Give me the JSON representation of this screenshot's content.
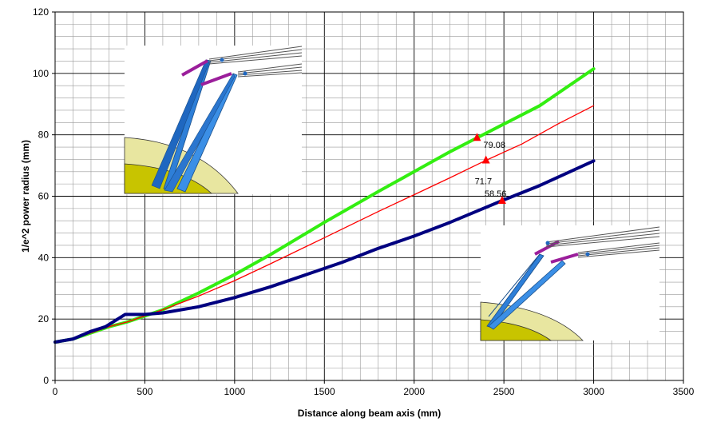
{
  "chart_data": {
    "type": "line",
    "xlabel": "Distance along beam axis (mm)",
    "ylabel": "1/e^2 power radius (mm)",
    "xlim": [
      0,
      3500
    ],
    "ylim": [
      0,
      120
    ],
    "x_ticks": [
      "0",
      "500",
      "1000",
      "1500",
      "2000",
      "2500",
      "3000",
      "3500"
    ],
    "y_ticks": [
      "0",
      "20",
      "40",
      "60",
      "80",
      "100",
      "120"
    ],
    "grid": "major and minor",
    "legend": "none",
    "series": [
      {
        "color": "#33ee11",
        "x": [
          0,
          100,
          200,
          300,
          400,
          500,
          600,
          800,
          1000,
          1200,
          1500,
          1800,
          2000,
          2200,
          2350,
          2500,
          2700,
          3000
        ],
        "y": [
          12.5,
          13.5,
          15.5,
          17.5,
          19,
          21,
          23,
          28.5,
          34.5,
          41,
          51.5,
          61.5,
          68,
          74.5,
          79,
          83.5,
          89.5,
          101.5
        ]
      },
      {
        "color": "#ff0000",
        "x": [
          0,
          100,
          200,
          300,
          400,
          500,
          600,
          800,
          1000,
          1200,
          1500,
          1800,
          2000,
          2200,
          2400,
          2600,
          2800,
          3000
        ],
        "y": [
          12.5,
          13.5,
          15.5,
          17.5,
          19,
          21,
          23,
          27.5,
          32.5,
          38,
          46.5,
          55,
          60.5,
          66,
          71.7,
          77,
          83.5,
          89.5
        ]
      },
      {
        "color": "#000080",
        "x": [
          0,
          100,
          200,
          280,
          390,
          500,
          600,
          800,
          1000,
          1200,
          1400,
          1600,
          1800,
          2000,
          2200,
          2490,
          2700,
          3000
        ],
        "y": [
          12.5,
          13.5,
          16,
          17.5,
          21.5,
          21.5,
          22,
          24,
          27,
          30.5,
          34.5,
          38.5,
          43,
          47,
          51.5,
          58.56,
          63.5,
          71.5
        ]
      }
    ],
    "markers": [
      {
        "x": 2350,
        "y": 79.08,
        "label": "79.08",
        "color": "#ff0000"
      },
      {
        "x": 2400,
        "y": 71.7,
        "label": "71.7",
        "color": "#ff0000"
      },
      {
        "x": 2490,
        "y": 58.56,
        "label": "58.56",
        "color": "#ff0000"
      }
    ]
  },
  "insets": [
    {
      "name": "upper-left-3d-render"
    },
    {
      "name": "lower-right-3d-render"
    }
  ]
}
